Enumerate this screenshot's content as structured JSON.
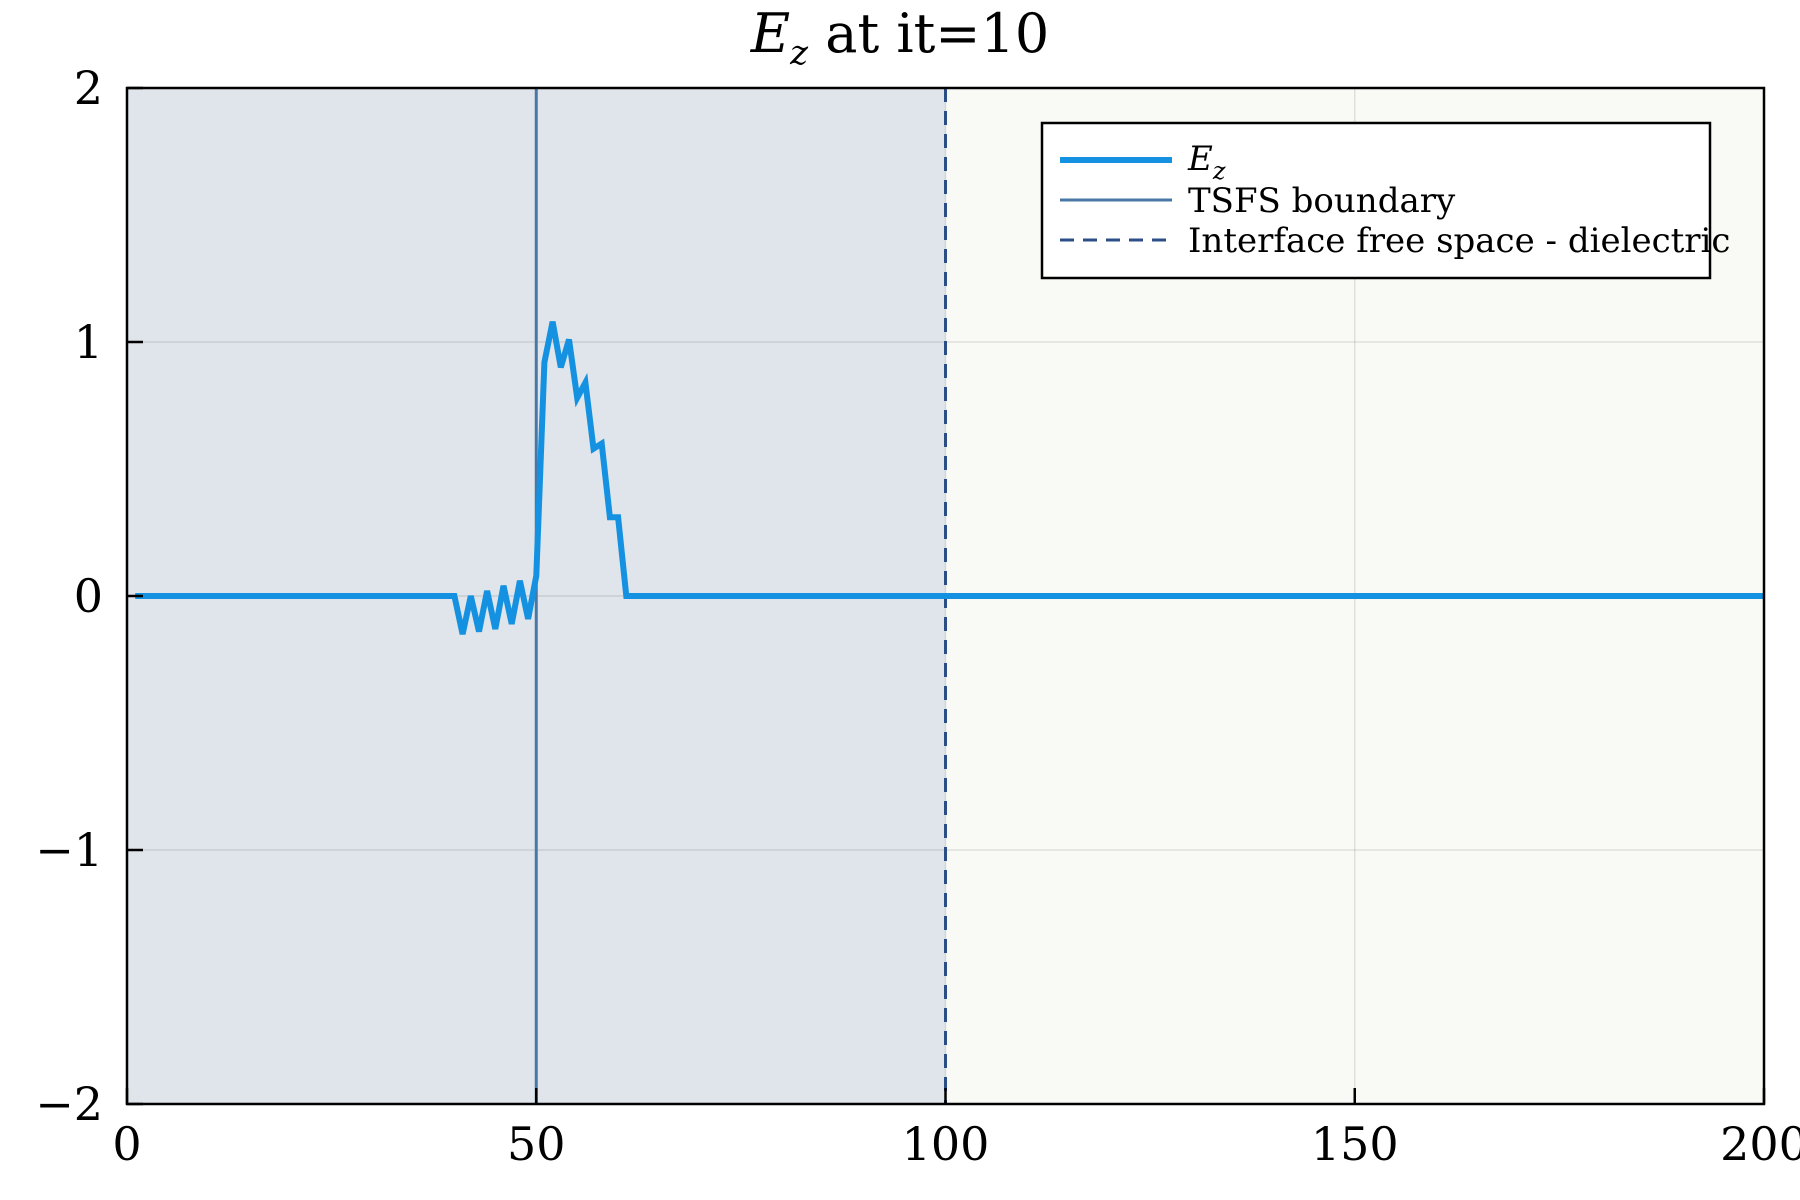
{
  "chart_data": {
    "type": "line",
    "title": {
      "symbol": "E",
      "subscript": "z",
      "rest": " at it=10"
    },
    "xlabel": "",
    "ylabel": "",
    "xlim": [
      0,
      200
    ],
    "ylim": [
      -2,
      2
    ],
    "x_ticks": [
      0,
      50,
      100,
      150,
      200
    ],
    "y_ticks": [
      -2,
      -1,
      0,
      1,
      2
    ],
    "x_tick_labels": [
      "0",
      "50",
      "100",
      "150",
      "200"
    ],
    "y_tick_labels": [
      "−2",
      "−1",
      "0",
      "1",
      "2"
    ],
    "grid": true,
    "legend_position": "top-right",
    "regions": [
      {
        "x_start": 0,
        "x_end": 100,
        "color": "#dfe5ea"
      },
      {
        "x_start": 100,
        "x_end": 200,
        "color": "#f9faf5"
      }
    ],
    "series": [
      {
        "name": "E_z",
        "legend_symbol": "E",
        "legend_subscript": "z",
        "color": "#1491e0",
        "style": "solid",
        "x": [
          1,
          40,
          41,
          42,
          43,
          44,
          45,
          46,
          47,
          48,
          49,
          50,
          51,
          52,
          53,
          54,
          55,
          56,
          57,
          58,
          59,
          60,
          61,
          200
        ],
        "y": [
          0,
          0,
          -0.15,
          0.0,
          -0.14,
          0.02,
          -0.13,
          0.04,
          -0.11,
          0.06,
          -0.09,
          0.08,
          0.92,
          1.08,
          0.9,
          1.01,
          0.78,
          0.84,
          0.58,
          0.6,
          0.31,
          0.31,
          0,
          0
        ]
      },
      {
        "name": "TSFS boundary",
        "color": "#4a78a6",
        "style": "solid",
        "vline": 50
      },
      {
        "name": "Interface free space - dielectric",
        "color": "#2b4f85",
        "style": "dashed",
        "vline": 100
      }
    ]
  }
}
